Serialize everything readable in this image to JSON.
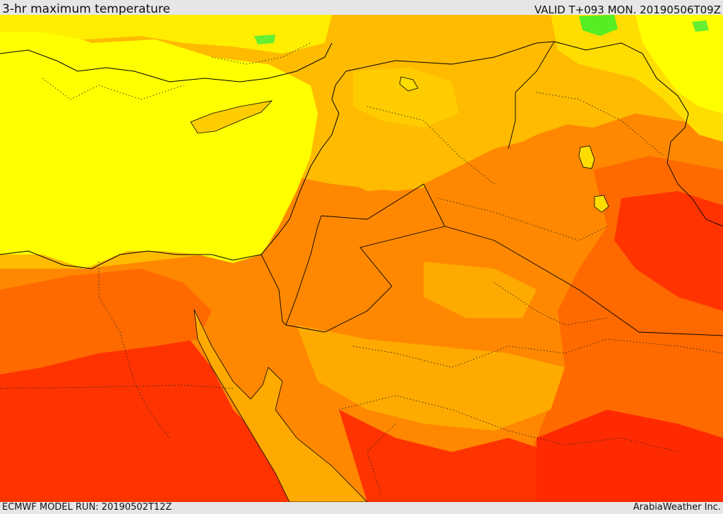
{
  "header": {
    "title": "3-hr maximum temperature",
    "valid": "VALID T+093 MON. 20190506T09Z"
  },
  "footer": {
    "model_run": "ECMWF MODEL RUN: 20190502T12Z",
    "credit": "ArabiaWeather Inc."
  },
  "palette": {
    "yellow": "#ffff00",
    "gold": "#ffdd00",
    "amber": "#ffbb00",
    "orange": "#ff8800",
    "dark_orange": "#ff6a00",
    "red_orange": "#ff3300",
    "green": "#55ee22",
    "border": "#000000"
  }
}
